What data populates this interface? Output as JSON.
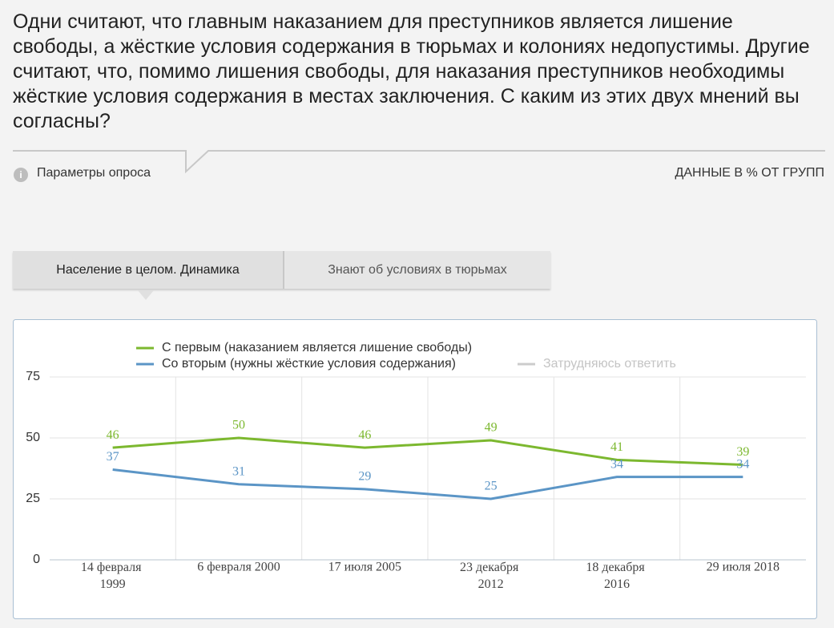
{
  "header": {
    "question": "Одни считают, что главным наказанием для преступников является лишение свободы, а жёсткие условия содержания в тюрьмах и колониях недопустимы. Другие считают, что, помимо лишения свободы, для наказания преступников необходимы жёсткие условия содержания в местах заключения. С каким из этих двух мнений вы согласны?",
    "params": "Параметры опроса",
    "units_note": "ДАННЫЕ В % ОТ ГРУПП"
  },
  "tabs": [
    "Население в целом. Динамика",
    "Знают об условиях в тюрьмах"
  ],
  "chart_data": {
    "type": "line",
    "categories": [
      "14 февраля 1999",
      "6 февраля 2000",
      "17 июля 2005",
      "23 декабря 2012",
      "18 декабря 2016",
      "29 июля 2018"
    ],
    "series": [
      {
        "name": "С первым (наказанием является лишение свободы)",
        "color": "#7cb82f",
        "values": [
          46,
          50,
          46,
          49,
          41,
          39
        ]
      },
      {
        "name": "Со вторым (нужны жёсткие условия содержания)",
        "color": "#5b95c6",
        "values": [
          37,
          31,
          29,
          25,
          34,
          34
        ]
      },
      {
        "name": "Затрудняюсь ответить",
        "color": "#cccccc",
        "hidden": true,
        "values": [
          null,
          null,
          null,
          null,
          null,
          null
        ]
      }
    ],
    "ylim": [
      0,
      75
    ],
    "yticks": [
      0,
      25,
      50,
      75
    ],
    "grid": true
  }
}
